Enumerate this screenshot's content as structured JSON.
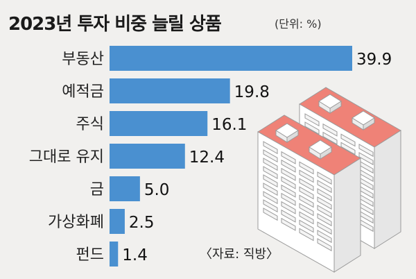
{
  "title": "2023년 투자 비중 늘릴 상품",
  "unit_note": "(단위: %)",
  "source": "〈자료: 직방〉",
  "colors": {
    "bar": "#4a90d0",
    "background": "#f1f0ee",
    "building_roof": "#ef8277",
    "building_wall": "#ffffff",
    "building_side": "#e6e6e6",
    "building_outline": "#9a9a9a"
  },
  "chart_data": {
    "type": "bar",
    "orientation": "horizontal",
    "title": "2023년 투자 비중 늘릴 상품",
    "unit": "%",
    "categories": [
      "부동산",
      "예적금",
      "주식",
      "그대로 유지",
      "금",
      "가상화폐",
      "펀드"
    ],
    "values": [
      39.9,
      19.8,
      16.1,
      12.4,
      5.0,
      2.5,
      1.4
    ],
    "value_labels": [
      "39.9",
      "19.8",
      "16.1",
      "12.4",
      "5.0",
      "2.5",
      "1.4"
    ],
    "xlim": [
      0,
      39.9
    ],
    "grid": false,
    "legend": "none"
  },
  "illustration": {
    "icon": "apartment-buildings-icon"
  }
}
